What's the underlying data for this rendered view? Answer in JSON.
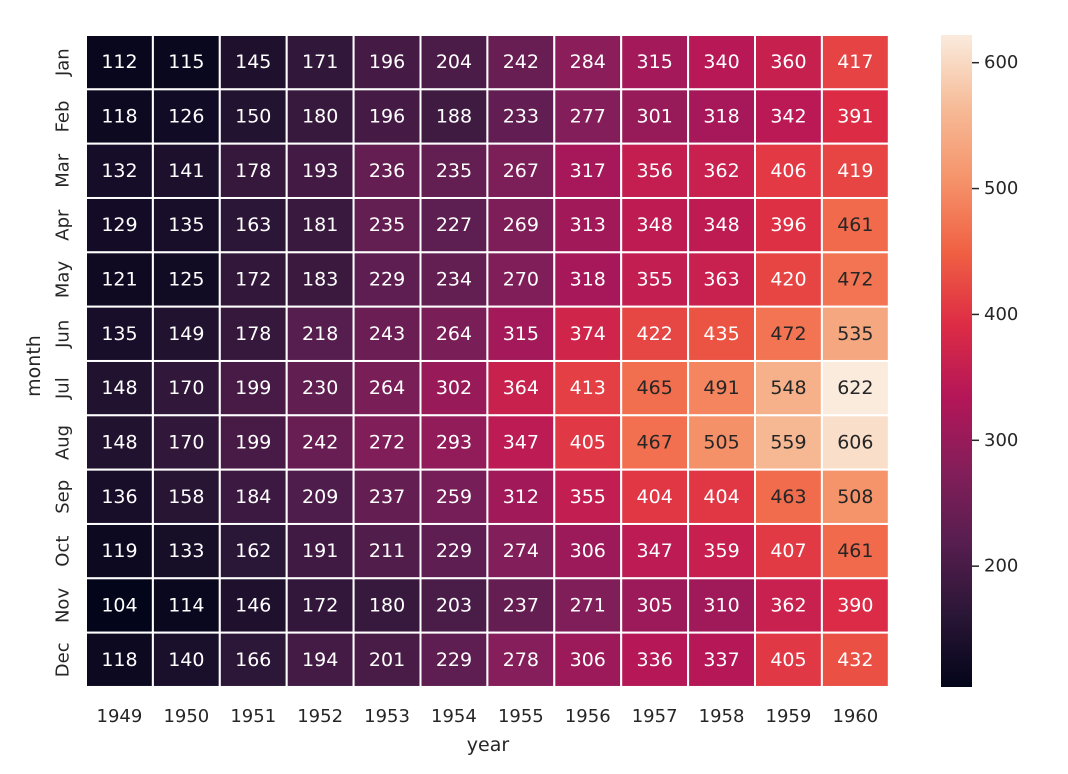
{
  "chart_data": {
    "type": "heatmap",
    "title": "",
    "xlabel": "year",
    "ylabel": "month",
    "x": [
      "1949",
      "1950",
      "1951",
      "1952",
      "1953",
      "1954",
      "1955",
      "1956",
      "1957",
      "1958",
      "1959",
      "1960"
    ],
    "y": [
      "Jan",
      "Feb",
      "Mar",
      "Apr",
      "May",
      "Jun",
      "Jul",
      "Aug",
      "Sep",
      "Oct",
      "Nov",
      "Dec"
    ],
    "values": [
      [
        112,
        115,
        145,
        171,
        196,
        204,
        242,
        284,
        315,
        340,
        360,
        417
      ],
      [
        118,
        126,
        150,
        180,
        196,
        188,
        233,
        277,
        301,
        318,
        342,
        391
      ],
      [
        132,
        141,
        178,
        193,
        236,
        235,
        267,
        317,
        356,
        362,
        406,
        419
      ],
      [
        129,
        135,
        163,
        181,
        235,
        227,
        269,
        313,
        348,
        348,
        396,
        461
      ],
      [
        121,
        125,
        172,
        183,
        229,
        234,
        270,
        318,
        355,
        363,
        420,
        472
      ],
      [
        135,
        149,
        178,
        218,
        243,
        264,
        315,
        374,
        422,
        435,
        472,
        535
      ],
      [
        148,
        170,
        199,
        230,
        264,
        302,
        364,
        413,
        465,
        491,
        548,
        622
      ],
      [
        148,
        170,
        199,
        242,
        272,
        293,
        347,
        405,
        467,
        505,
        559,
        606
      ],
      [
        136,
        158,
        184,
        209,
        237,
        259,
        312,
        355,
        404,
        404,
        463,
        508
      ],
      [
        119,
        133,
        162,
        191,
        211,
        229,
        274,
        306,
        347,
        359,
        407,
        461
      ],
      [
        104,
        114,
        146,
        172,
        180,
        203,
        237,
        271,
        305,
        310,
        362,
        390
      ],
      [
        118,
        140,
        166,
        194,
        201,
        229,
        278,
        306,
        336,
        337,
        405,
        432
      ]
    ],
    "annotated": true,
    "colorbar": {
      "vmin": 104,
      "vmax": 622,
      "ticks": [
        200,
        300,
        400,
        500,
        600
      ],
      "tick_labels": [
        "200",
        "300",
        "400",
        "500",
        "600"
      ]
    },
    "colormap": [
      "#03051a",
      "#2a1636",
      "#571e4f",
      "#841e5a",
      "#b41658",
      "#dd2c45",
      "#f06043",
      "#f5936a",
      "#f6bb97",
      "#faebdd"
    ],
    "cell_gap_color": "#ffffff"
  }
}
